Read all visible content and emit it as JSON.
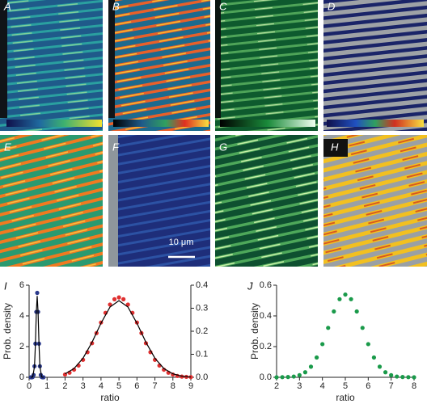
{
  "image_panels": {
    "labels": [
      "A",
      "B",
      "C",
      "D",
      "E",
      "F",
      "G",
      "H"
    ],
    "scale_bar": "10 μm"
  },
  "chart_data": [
    {
      "type": "scatter",
      "label": "I",
      "xlabel": "ratio",
      "ylabel": "Prob. density",
      "xlim": [
        0,
        9
      ],
      "xticks": [
        0,
        1,
        2,
        3,
        4,
        5,
        6,
        7,
        8,
        9
      ],
      "ylim": [
        0,
        6
      ],
      "yticks": [
        0,
        2,
        4,
        6
      ],
      "y2lim": [
        0,
        0.4
      ],
      "y2ticks": [
        {
          "value": 0,
          "label": "0.0"
        },
        0.1,
        0.2,
        0.3,
        0.4
      ],
      "series": [
        {
          "color": "#2b3a8c",
          "x": [
            0.1,
            0.15,
            0.2,
            0.25,
            0.3,
            0.35,
            0.4,
            0.45,
            0.5,
            0.55,
            0.6,
            0.65,
            0.7,
            0.75,
            0.8
          ],
          "values": [
            0,
            0,
            0.02,
            0.15,
            0.72,
            2.19,
            4.26,
            5.5,
            4.26,
            2.19,
            0.72,
            0.15,
            0.02,
            0,
            0
          ]
        },
        {
          "type": "line",
          "color": "#000000",
          "x": [
            0.1,
            0.2,
            0.3,
            0.35,
            0.4,
            0.45,
            0.5,
            0.55,
            0.6,
            0.7,
            0.8
          ],
          "values": [
            0,
            0.02,
            0.7,
            2.15,
            4.2,
            5.3,
            4.2,
            2.15,
            0.7,
            0.02,
            0
          ]
        },
        {
          "color": "#e03030",
          "axis": "y2",
          "x": [
            2,
            2.25,
            2.5,
            2.75,
            3,
            3.25,
            3.5,
            3.75,
            4,
            4.25,
            4.5,
            4.75,
            5,
            5.25,
            5.5,
            5.75,
            6,
            6.25,
            6.5,
            6.75,
            7,
            7.25,
            7.5,
            7.75,
            8,
            8.25,
            8.5,
            8.75,
            9
          ],
          "values": [
            0.012,
            0.02,
            0.033,
            0.051,
            0.076,
            0.109,
            0.148,
            0.192,
            0.238,
            0.28,
            0.316,
            0.339,
            0.347,
            0.339,
            0.316,
            0.28,
            0.238,
            0.192,
            0.148,
            0.109,
            0.076,
            0.051,
            0.033,
            0.02,
            0.012,
            0.006,
            0.003,
            0.002,
            0.001
          ]
        },
        {
          "type": "line",
          "color": "#000000",
          "axis": "y2",
          "x": [
            2,
            2.5,
            3,
            3.5,
            4,
            4.5,
            5,
            5.5,
            6,
            6.5,
            7,
            7.5,
            8,
            8.5,
            9
          ],
          "values": [
            0.015,
            0.038,
            0.083,
            0.152,
            0.235,
            0.305,
            0.333,
            0.305,
            0.235,
            0.152,
            0.083,
            0.038,
            0.015,
            0.005,
            0.001
          ]
        }
      ]
    },
    {
      "type": "scatter",
      "label": "J",
      "xlabel": "ratio",
      "ylabel": "Prob. density",
      "xlim": [
        2,
        8
      ],
      "xticks": [
        2,
        3,
        4,
        5,
        6,
        7,
        8
      ],
      "ylim": [
        0,
        0.6
      ],
      "yticks": [
        {
          "value": 0,
          "label": "0.0"
        },
        0.2,
        0.4,
        0.6
      ],
      "series": [
        {
          "color": "#1a9a4a",
          "x": [
            2,
            2.25,
            2.5,
            2.75,
            3,
            3.25,
            3.5,
            3.75,
            4,
            4.25,
            4.5,
            4.75,
            5,
            5.25,
            5.5,
            5.75,
            6,
            6.25,
            6.5,
            6.75,
            7,
            7.25,
            7.5,
            7.75,
            8
          ],
          "values": [
            0,
            0.001,
            0.002,
            0.005,
            0.014,
            0.033,
            0.069,
            0.129,
            0.216,
            0.322,
            0.429,
            0.509,
            0.539,
            0.509,
            0.429,
            0.322,
            0.216,
            0.129,
            0.069,
            0.033,
            0.014,
            0.005,
            0.002,
            0.001,
            0
          ]
        }
      ]
    }
  ]
}
